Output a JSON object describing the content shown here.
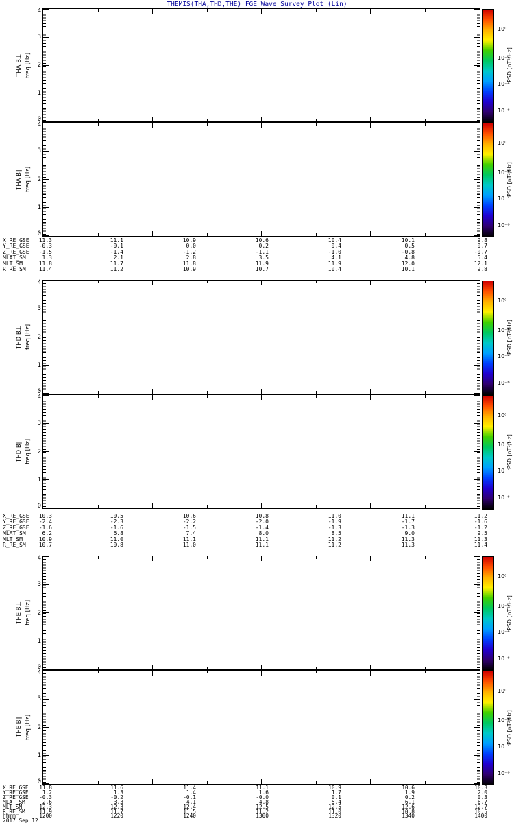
{
  "title": "THEMIS(THA,THD,THE) FGE Wave Survey Plot (Lin)",
  "title_color": "#000099",
  "yticks": [
    "4",
    "3",
    "2",
    "1",
    "0"
  ],
  "freq_label": "freq [Hz]",
  "panels": [
    {
      "label": "THA B⊥"
    },
    {
      "label": "THA B∥"
    },
    {
      "label": "THD B⊥"
    },
    {
      "label": "THD B∥"
    },
    {
      "label": "THE B⊥"
    },
    {
      "label": "THE B∥"
    }
  ],
  "colorbar": {
    "label": "PSD [nT²/Hz]",
    "ticks": [
      "10⁰",
      "10⁻²",
      "10⁻⁴",
      "10⁻⁶"
    ],
    "gradient_top_to_bottom": [
      "#d00000",
      "#ff5000",
      "#ffb000",
      "#fff000",
      "#40d000",
      "#00c860",
      "#00c8c8",
      "#00a0ff",
      "#0040ff",
      "#2000d0",
      "#300070",
      "#000000"
    ]
  },
  "blocks": [
    {
      "probe": "THA",
      "rows": [
        {
          "label": "X_RE_GSE",
          "values": [
            "11.3",
            "11.1",
            "10.9",
            "10.6",
            "10.4",
            "10.1",
            "9.8"
          ]
        },
        {
          "label": "Y_RE_GSE",
          "values": [
            "-0.3",
            "-0.1",
            "0.0",
            "0.2",
            "0.4",
            "0.5",
            "0.7"
          ]
        },
        {
          "label": "Z_RE_GSE",
          "values": [
            "-1.5",
            "-1.4",
            "-1.2",
            "-1.1",
            "-1.0",
            "-0.8",
            "-0.7"
          ]
        },
        {
          "label": "MLAT_SM",
          "values": [
            "1.3",
            "2.1",
            "2.8",
            "3.5",
            "4.1",
            "4.8",
            "5.4"
          ]
        },
        {
          "label": "MLT_SM",
          "values": [
            "11.8",
            "11.7",
            "11.8",
            "11.9",
            "11.9",
            "12.0",
            "12.1"
          ]
        },
        {
          "label": "R_RE_SM",
          "values": [
            "11.4",
            "11.2",
            "10.9",
            "10.7",
            "10.4",
            "10.1",
            "9.8"
          ]
        }
      ]
    },
    {
      "probe": "THD",
      "rows": [
        {
          "label": "X_RE_GSE",
          "values": [
            "10.3",
            "10.5",
            "10.6",
            "10.8",
            "11.0",
            "11.1",
            "11.2"
          ]
        },
        {
          "label": "Y_RE_GSE",
          "values": [
            "-2.4",
            "-2.3",
            "-2.2",
            "-2.0",
            "-1.9",
            "-1.7",
            "-1.6"
          ]
        },
        {
          "label": "Z_RE_GSE",
          "values": [
            "-1.6",
            "-1.6",
            "-1.5",
            "-1.4",
            "-1.3",
            "-1.3",
            "-1.2"
          ]
        },
        {
          "label": "MLAT_SM",
          "values": [
            "6.2",
            "6.8",
            "7.4",
            "8.0",
            "8.5",
            "9.0",
            "9.5"
          ]
        },
        {
          "label": "MLT_SM",
          "values": [
            "10.9",
            "11.0",
            "11.1",
            "11.1",
            "11.2",
            "11.3",
            "11.3"
          ]
        },
        {
          "label": "R_RE_SM",
          "values": [
            "10.7",
            "10.8",
            "11.0",
            "11.1",
            "11.2",
            "11.3",
            "11.4"
          ]
        }
      ]
    },
    {
      "probe": "THE",
      "rows": [
        {
          "label": "X_RE_GSE",
          "values": [
            "11.8",
            "11.6",
            "11.4",
            "11.1",
            "10.9",
            "10.6",
            "10.3"
          ]
        },
        {
          "label": "Y_RE_GSE",
          "values": [
            "1.2",
            "1.3",
            "1.4",
            "1.6",
            "1.7",
            "1.9",
            "2.0"
          ]
        },
        {
          "label": "Z_RE_GSE",
          "values": [
            "-0.3",
            "-0.2",
            "-0.1",
            "-0.0",
            "0.1",
            "0.2",
            "0.3"
          ]
        },
        {
          "label": "MLAT_SM",
          "values": [
            "2.6",
            "3.3",
            "4.1",
            "4.8",
            "5.4",
            "6.1",
            "6.7"
          ]
        },
        {
          "label": "MLT_SM",
          "values": [
            "12.3",
            "12.3",
            "12.4",
            "12.5",
            "12.5",
            "12.6",
            "12.7"
          ]
        },
        {
          "label": "R_RE_SM",
          "values": [
            "11.9",
            "11.7",
            "11.5",
            "11.2",
            "11.0",
            "10.8",
            "10.5"
          ]
        },
        {
          "label": "hhmm",
          "values": [
            "1200",
            "1220",
            "1240",
            "1300",
            "1320",
            "1340",
            "1400"
          ]
        }
      ]
    }
  ],
  "footer": {
    "date": "2017 Sep 12"
  },
  "chart_data": {
    "type": "heatmap",
    "subtype": "wave-survey spectrogram (6 stacked panels, no spectral data rendered; panels are blank white)",
    "title": "THEMIS(THA,THD,THE) FGE Wave Survey Plot (Lin)",
    "panels": [
      "THA B⊥",
      "THA B∥",
      "THD B⊥",
      "THD B∥",
      "THE B⊥",
      "THE B∥"
    ],
    "ylabel": "freq [Hz]",
    "ylim": [
      0,
      4
    ],
    "y_major_ticks": [
      0,
      1,
      2,
      3,
      4
    ],
    "x_time_ticks_hhmm": [
      "1200",
      "1220",
      "1240",
      "1300",
      "1320",
      "1340",
      "1400"
    ],
    "date": "2017 Sep 12",
    "colorbar": {
      "label": "PSD [nT²/Hz]",
      "scale": "log",
      "tick_labels": [
        "10⁰",
        "10⁻²",
        "10⁻⁴",
        "10⁻⁶"
      ],
      "palette": "rainbow (red top → black bottom)"
    },
    "series": [],
    "ephemeris": [
      {
        "probe": "THA",
        "X_RE_GSE": [
          11.3,
          11.1,
          10.9,
          10.6,
          10.4,
          10.1,
          9.8
        ],
        "Y_RE_GSE": [
          -0.3,
          -0.1,
          0.0,
          0.2,
          0.4,
          0.5,
          0.7
        ],
        "Z_RE_GSE": [
          -1.5,
          -1.4,
          -1.2,
          -1.1,
          -1.0,
          -0.8,
          -0.7
        ],
        "MLAT_SM": [
          1.3,
          2.1,
          2.8,
          3.5,
          4.1,
          4.8,
          5.4
        ],
        "MLT_SM": [
          11.8,
          11.7,
          11.8,
          11.9,
          11.9,
          12.0,
          12.1
        ],
        "R_RE_SM": [
          11.4,
          11.2,
          10.9,
          10.7,
          10.4,
          10.1,
          9.8
        ]
      },
      {
        "probe": "THD",
        "X_RE_GSE": [
          10.3,
          10.5,
          10.6,
          10.8,
          11.0,
          11.1,
          11.2
        ],
        "Y_RE_GSE": [
          -2.4,
          -2.3,
          -2.2,
          -2.0,
          -1.9,
          -1.7,
          -1.6
        ],
        "Z_RE_GSE": [
          -1.6,
          -1.6,
          -1.5,
          -1.4,
          -1.3,
          -1.3,
          -1.2
        ],
        "MLAT_SM": [
          6.2,
          6.8,
          7.4,
          8.0,
          8.5,
          9.0,
          9.5
        ],
        "MLT_SM": [
          10.9,
          11.0,
          11.1,
          11.1,
          11.2,
          11.3,
          11.3
        ],
        "R_RE_SM": [
          10.7,
          10.8,
          11.0,
          11.1,
          11.2,
          11.3,
          11.4
        ]
      },
      {
        "probe": "THE",
        "X_RE_GSE": [
          11.8,
          11.6,
          11.4,
          11.1,
          10.9,
          10.6,
          10.3
        ],
        "Y_RE_GSE": [
          1.2,
          1.3,
          1.4,
          1.6,
          1.7,
          1.9,
          2.0
        ],
        "Z_RE_GSE": [
          -0.3,
          -0.2,
          -0.1,
          -0.0,
          0.1,
          0.2,
          0.3
        ],
        "MLAT_SM": [
          2.6,
          3.3,
          4.1,
          4.8,
          5.4,
          6.1,
          6.7
        ],
        "MLT_SM": [
          12.3,
          12.3,
          12.4,
          12.5,
          12.5,
          12.6,
          12.7
        ],
        "R_RE_SM": [
          11.9,
          11.7,
          11.5,
          11.2,
          11.0,
          10.8,
          10.5
        ]
      }
    ]
  }
}
